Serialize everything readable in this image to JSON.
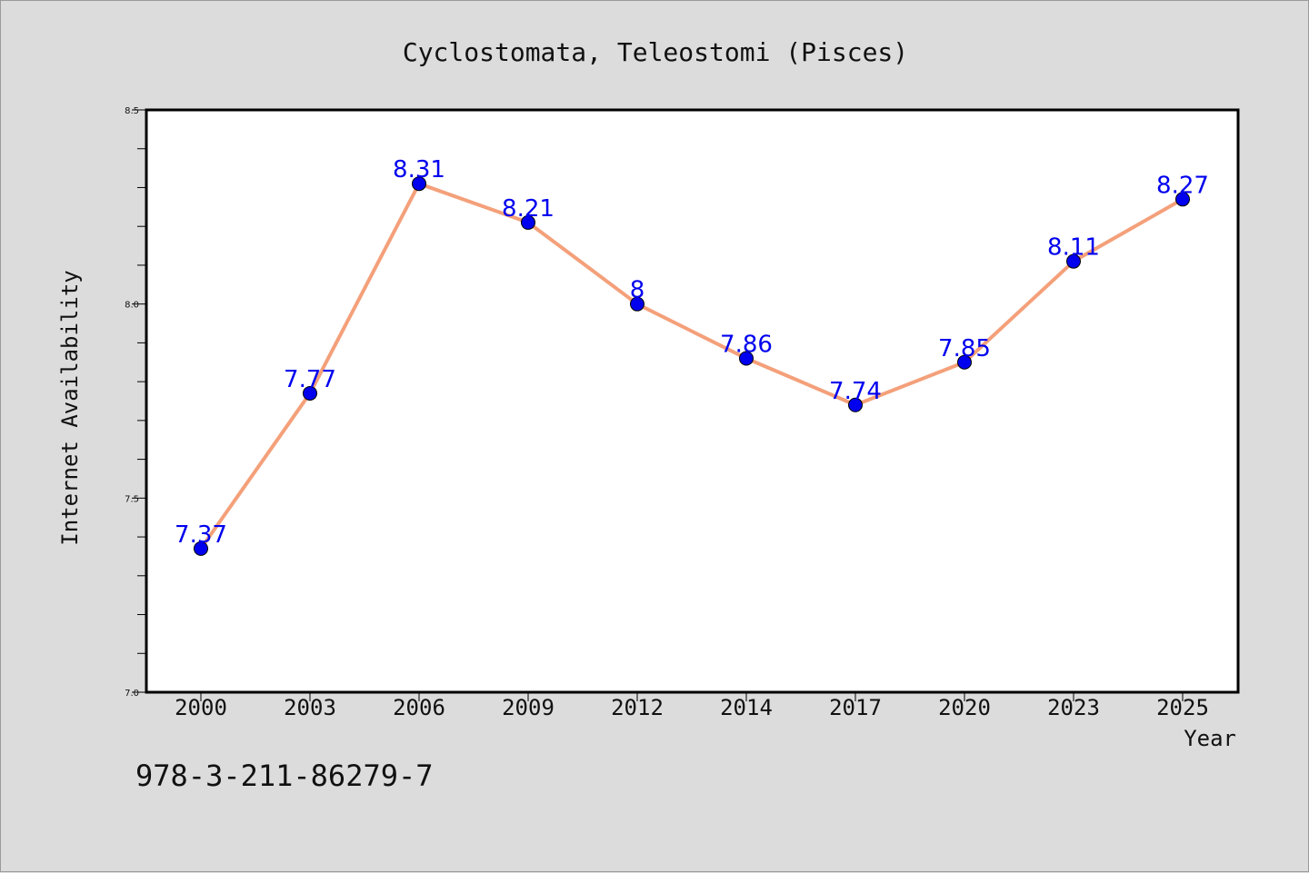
{
  "chart_data": {
    "type": "line",
    "title": "Cyclostomata, Teleostomi (Pisces)",
    "xlabel": "Year",
    "ylabel": "Internet Availability",
    "categories": [
      "2000",
      "2003",
      "2006",
      "2009",
      "2012",
      "2014",
      "2017",
      "2020",
      "2023",
      "2025"
    ],
    "values": [
      7.37,
      7.77,
      8.31,
      8.21,
      8,
      7.86,
      7.74,
      7.85,
      8.11,
      8.27
    ],
    "data_labels": [
      "7.37",
      "7.77",
      "8.31",
      "8.21",
      "8",
      "7.86",
      "7.74",
      "7.85",
      "8.11",
      "8.27"
    ],
    "ylim": [
      7.0,
      8.5
    ],
    "yticks": [
      "7.0",
      "7.5",
      "8.0",
      "8.5"
    ],
    "grid": false,
    "legend": "none",
    "line_color": "#f4a07a",
    "marker_color": "#0000ee",
    "label_color": "#0000ee"
  },
  "annotation": "978-3-211-86279-7"
}
